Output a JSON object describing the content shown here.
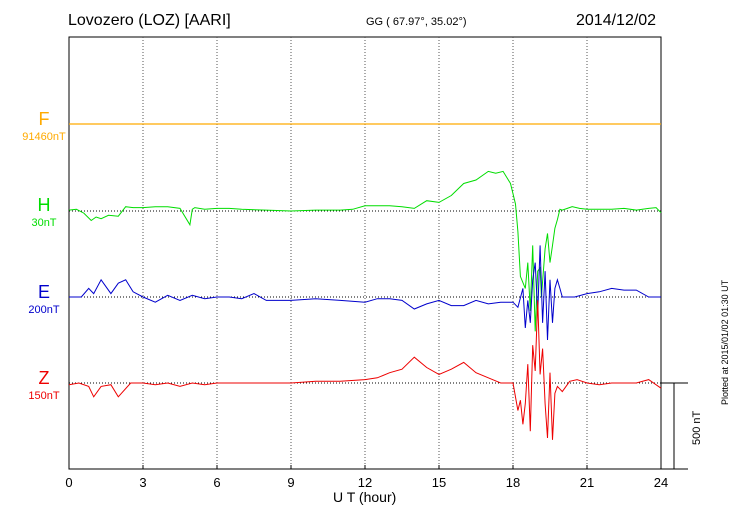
{
  "header": {
    "station": "Lovozero (LOZ)  [AARI]",
    "coordinates": "GG ( 67.97°,  35.02°)",
    "date": "2014/12/02"
  },
  "footer": {
    "plotted": "Plotted at 2015/01/02 01:30 UT"
  },
  "scale_bar_label": "500 nT",
  "channels": {
    "F": {
      "label": "F",
      "scale": "91460nT",
      "color": "#ffaa00"
    },
    "H": {
      "label": "H",
      "scale": "30nT",
      "color": "#00dd00"
    },
    "E": {
      "label": "E",
      "scale": "200nT",
      "color": "#0000cc"
    },
    "Z": {
      "label": "Z",
      "scale": "150nT",
      "color": "#ee0000"
    }
  },
  "chart_data": {
    "type": "line",
    "xlabel": "U T (hour)",
    "xlim": [
      0,
      24
    ],
    "xticks": [
      "0",
      "3",
      "6",
      "9",
      "12",
      "15",
      "18",
      "21",
      "24"
    ],
    "y_unit": "nT",
    "scale_bar_nT": 500,
    "grid": true,
    "series": [
      {
        "name": "F",
        "color": "#ffaa00",
        "baseline_nT": 91460,
        "x": [
          0,
          24
        ],
        "y": [
          0,
          0
        ]
      },
      {
        "name": "H",
        "color": "#00dd00",
        "baseline_nT": 30,
        "x": [
          0,
          0.3,
          0.6,
          0.9,
          1.1,
          1.3,
          1.6,
          2.0,
          2.3,
          2.6,
          3.0,
          3.5,
          4.0,
          4.5,
          4.9,
          5.0,
          5.1,
          5.5,
          6.0,
          6.5,
          7.0,
          8.0,
          9.0,
          10.0,
          11.0,
          11.5,
          12.0,
          12.5,
          13.0,
          13.5,
          14.0,
          14.5,
          15.0,
          15.5,
          16.0,
          16.5,
          17.0,
          17.3,
          17.6,
          17.9,
          18.1,
          18.2,
          18.3,
          18.5,
          18.6,
          18.7,
          18.8,
          18.9,
          19.0,
          19.1,
          19.15,
          19.3,
          19.4,
          19.5,
          19.6,
          19.7,
          19.8,
          19.9,
          20.0,
          20.2,
          20.4,
          20.7,
          21.0,
          21.5,
          22.0,
          22.5,
          23.0,
          23.5,
          23.8,
          24.0
        ],
        "y": [
          5,
          10,
          -12,
          -55,
          -35,
          -45,
          -25,
          -30,
          25,
          20,
          20,
          25,
          25,
          15,
          -80,
          10,
          20,
          10,
          15,
          15,
          10,
          5,
          0,
          5,
          5,
          10,
          30,
          30,
          30,
          25,
          15,
          60,
          50,
          90,
          160,
          180,
          230,
          220,
          230,
          160,
          40,
          -120,
          -380,
          -450,
          -300,
          -580,
          -200,
          -700,
          -350,
          -330,
          -500,
          -220,
          -130,
          -300,
          -200,
          -100,
          -50,
          10,
          5,
          15,
          25,
          15,
          10,
          10,
          10,
          15,
          5,
          15,
          20,
          -10
        ]
      },
      {
        "name": "E",
        "color": "#0000cc",
        "baseline_nT": 200,
        "x": [
          0,
          0.5,
          0.8,
          1.0,
          1.3,
          1.7,
          2.0,
          2.3,
          2.6,
          3.0,
          3.5,
          4.0,
          4.5,
          5.0,
          5.5,
          6.0,
          6.5,
          7.0,
          7.5,
          8.0,
          9.0,
          10.0,
          11.0,
          12.0,
          12.5,
          13.0,
          13.5,
          14.0,
          14.5,
          15.0,
          15.5,
          16.0,
          16.5,
          17.0,
          17.5,
          18.0,
          18.2,
          18.4,
          18.5,
          18.6,
          18.7,
          18.8,
          18.9,
          19.0,
          19.1,
          19.2,
          19.3,
          19.4,
          19.5,
          19.6,
          19.7,
          19.8,
          19.9,
          20.0,
          20.5,
          21.0,
          21.5,
          22.0,
          22.5,
          23.0,
          23.5,
          24.0
        ],
        "y": [
          0,
          0,
          50,
          20,
          100,
          20,
          80,
          100,
          30,
          0,
          -30,
          10,
          -20,
          10,
          -10,
          0,
          0,
          -10,
          20,
          -20,
          -20,
          -10,
          -20,
          -30,
          -10,
          -10,
          -20,
          -70,
          -40,
          -20,
          -50,
          -50,
          -20,
          -40,
          -30,
          -30,
          -60,
          50,
          -180,
          -20,
          -150,
          100,
          200,
          -100,
          300,
          -150,
          150,
          -250,
          100,
          -150,
          50,
          100,
          50,
          0,
          0,
          20,
          30,
          50,
          40,
          40,
          0,
          0
        ]
      },
      {
        "name": "Z",
        "color": "#ee0000",
        "baseline_nT": 150,
        "x": [
          0,
          0.4,
          0.8,
          1.0,
          1.3,
          1.7,
          2.0,
          2.5,
          3.0,
          3.5,
          4.0,
          4.5,
          5.0,
          5.5,
          6.0,
          7.0,
          8.0,
          9.0,
          10.0,
          11.0,
          12.0,
          12.5,
          13.0,
          13.5,
          14.0,
          14.5,
          15.0,
          15.5,
          16.0,
          16.5,
          17.0,
          17.5,
          18.0,
          18.2,
          18.3,
          18.4,
          18.5,
          18.6,
          18.7,
          18.8,
          18.9,
          19.0,
          19.1,
          19.2,
          19.3,
          19.4,
          19.5,
          19.6,
          19.7,
          19.8,
          20.0,
          20.3,
          20.6,
          21.0,
          21.5,
          22.0,
          22.5,
          23.0,
          23.5,
          24.0
        ],
        "y": [
          -10,
          0,
          -20,
          -80,
          -20,
          -10,
          -80,
          0,
          0,
          -10,
          0,
          -20,
          0,
          -10,
          0,
          0,
          0,
          0,
          10,
          10,
          20,
          30,
          60,
          80,
          150,
          90,
          50,
          80,
          120,
          60,
          30,
          0,
          0,
          -160,
          -100,
          -240,
          -120,
          110,
          -280,
          220,
          70,
          480,
          50,
          200,
          -120,
          -320,
          60,
          -330,
          -60,
          -20,
          -50,
          10,
          20,
          0,
          -10,
          0,
          0,
          0,
          20,
          -30
        ]
      }
    ]
  }
}
